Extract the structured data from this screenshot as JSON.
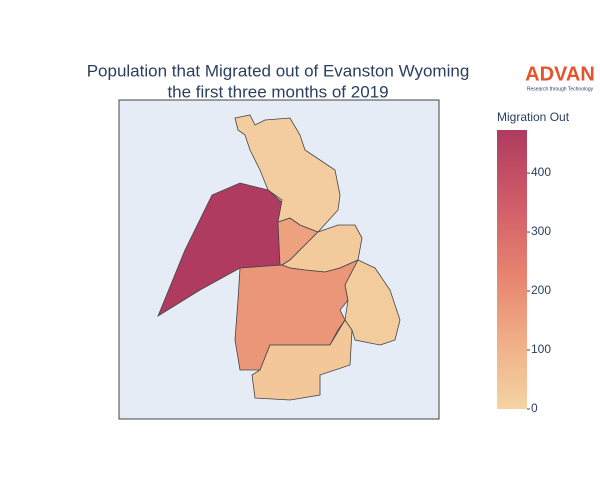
{
  "chart_data": {
    "type": "choropleth",
    "title": [
      "Population that Migrated out of Evanston Wyoming",
      "the first three months of 2019"
    ],
    "logo": {
      "name": "ADVAN",
      "tagline": "Research through Technology",
      "color": "#e8532b"
    },
    "values": [
      470,
      150,
      20,
      30,
      180,
      40,
      25
    ],
    "colorbar": {
      "title": "Migration Out",
      "clim": [
        0,
        473
      ],
      "ticks": [
        0,
        100,
        200,
        300,
        400
      ],
      "colorscale": [
        "#f4d4a4",
        "#f0ad85",
        "#e6806e",
        "#cf5a69",
        "#ae3b60"
      ]
    },
    "background": "#e5ecf6",
    "border_color": "#444444"
  }
}
